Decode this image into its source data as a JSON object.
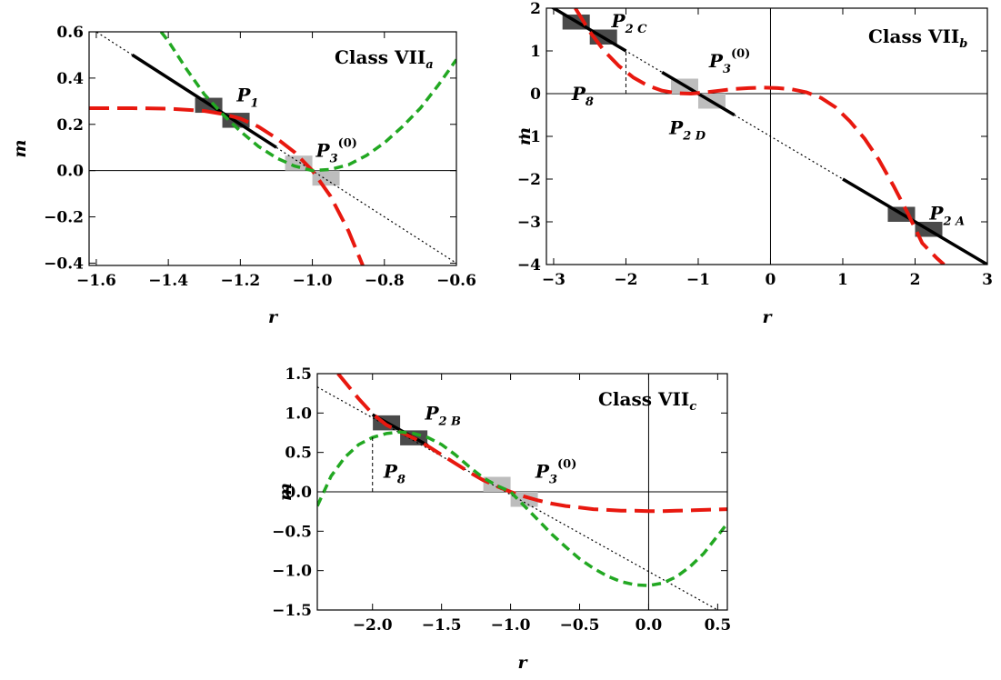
{
  "colors": {
    "red_curve": "#e8180f",
    "green_curve": "#22a822",
    "dark_marker": "#4a4a4a",
    "light_marker": "#bdbdbd"
  },
  "chart_data": [
    {
      "type": "line",
      "title": "Class VII",
      "title_subscript": "a",
      "xlabel": "r",
      "ylabel": "m",
      "xlim": [
        -1.62,
        -0.6
      ],
      "ylim": [
        -0.41,
        0.6
      ],
      "xticks": [
        -1.6,
        -1.4,
        -1.2,
        -1.0,
        -0.8,
        -0.6
      ],
      "xtick_labels": [
        "−1.6",
        "−1.4",
        "−1.2",
        "−1.0",
        "−0.8",
        "−0.6"
      ],
      "yticks": [
        -0.4,
        -0.2,
        0.0,
        0.2,
        0.4,
        0.6
      ],
      "ytick_labels": [
        "−0.4",
        "−0.2",
        "0.0",
        "0.2",
        "0.4",
        "0.6"
      ],
      "zero_lines": {
        "x": false,
        "y": true
      },
      "series": [
        {
          "style": "dotted-line",
          "x": [
            -1.62,
            -0.6
          ],
          "y": [
            0.62,
            -0.4
          ]
        },
        {
          "style": "black-line",
          "x": [
            -1.5,
            -1.1
          ],
          "y": [
            0.5,
            0.1
          ]
        },
        {
          "style": "red-dash",
          "x": [
            -1.62,
            -1.5,
            -1.4,
            -1.3,
            -1.25,
            -1.2,
            -1.15,
            -1.1,
            -1.05,
            -1.0,
            -0.95,
            -0.9,
            -0.86
          ],
          "y": [
            0.27,
            0.27,
            0.268,
            0.258,
            0.245,
            0.225,
            0.19,
            0.14,
            0.08,
            0.0,
            -0.11,
            -0.26,
            -0.41
          ]
        },
        {
          "style": "green-dash",
          "x": [
            -1.42,
            -1.4,
            -1.35,
            -1.3,
            -1.25,
            -1.2,
            -1.15,
            -1.1,
            -1.05,
            -1.0,
            -0.95,
            -0.9,
            -0.85,
            -0.8,
            -0.75,
            -0.7,
            -0.65,
            -0.6
          ],
          "y": [
            0.6,
            0.56,
            0.44,
            0.33,
            0.245,
            0.17,
            0.105,
            0.055,
            0.02,
            0.0,
            0.005,
            0.025,
            0.065,
            0.12,
            0.19,
            0.27,
            0.37,
            0.48
          ]
        }
      ],
      "markers": [
        {
          "x": -1.25,
          "y": 0.25,
          "shade": "dark",
          "label": "P",
          "sub": "1",
          "sup": "",
          "label_at": [
            -1.21,
            0.3
          ]
        },
        {
          "x": -1.0,
          "y": 0.0,
          "shade": "light",
          "label": "P",
          "sub": "3",
          "sup": "(0)",
          "label_at": [
            -0.99,
            0.06
          ]
        }
      ],
      "dashed_verticals": []
    },
    {
      "type": "line",
      "title": "Class VII",
      "title_subscript": "b",
      "xlabel": "r",
      "ylabel": "m",
      "xlim": [
        -3.1,
        3.0
      ],
      "ylim": [
        -4.0,
        2.0
      ],
      "xticks": [
        -3,
        -2,
        -1,
        0,
        1,
        2,
        3
      ],
      "xtick_labels": [
        "−3",
        "−2",
        "−1",
        "0",
        "1",
        "2",
        "3"
      ],
      "yticks": [
        -4,
        -3,
        -2,
        -1,
        0,
        1,
        2
      ],
      "ytick_labels": [
        "−4",
        "−3",
        "−2",
        "−1",
        "0",
        "1",
        "2"
      ],
      "zero_lines": {
        "x": true,
        "y": true
      },
      "series": [
        {
          "style": "dotted-line",
          "x": [
            -3.1,
            3.0
          ],
          "y": [
            2.1,
            -4.0
          ]
        },
        {
          "style": "black-line",
          "x": [
            -3.1,
            -2.0
          ],
          "y": [
            2.1,
            1.0
          ]
        },
        {
          "style": "black-line",
          "x": [
            -1.5,
            -0.5
          ],
          "y": [
            0.5,
            -0.5
          ]
        },
        {
          "style": "black-line",
          "x": [
            1.0,
            3.0
          ],
          "y": [
            -2.0,
            -4.0
          ]
        },
        {
          "style": "red-dash",
          "x": [
            -2.7,
            -2.5,
            -2.3,
            -2.1,
            -1.9,
            -1.7,
            -1.5,
            -1.3,
            -1.1,
            -0.9,
            -0.7,
            -0.5,
            -0.3,
            -0.1,
            0.1,
            0.3,
            0.5,
            0.7,
            0.9,
            1.1,
            1.3,
            1.5,
            1.7,
            1.9,
            2.1,
            2.3,
            2.4
          ],
          "y": [
            2.0,
            1.45,
            1.0,
            0.65,
            0.38,
            0.19,
            0.07,
            0.01,
            0.0,
            0.03,
            0.07,
            0.11,
            0.13,
            0.14,
            0.13,
            0.1,
            0.03,
            -0.1,
            -0.32,
            -0.65,
            -1.05,
            -1.55,
            -2.15,
            -2.8,
            -3.5,
            -3.85,
            -4.0
          ]
        }
      ],
      "markers": [
        {
          "x": -2.5,
          "y": 1.5,
          "shade": "dark",
          "label": "P",
          "sub": "2 C",
          "sup": "",
          "label_at": [
            -2.2,
            1.55
          ]
        },
        {
          "x": -1.0,
          "y": 0.0,
          "shade": "light",
          "label": "P",
          "sub": "3",
          "sup": "(0)",
          "label_at": [
            -0.85,
            0.62
          ]
        },
        {
          "x": 2.0,
          "y": -3.0,
          "shade": "dark",
          "label": "P",
          "sub": "2 A",
          "sup": "",
          "label_at": [
            2.2,
            -2.95
          ]
        }
      ],
      "extra_labels": [
        {
          "label": "P",
          "sub": "8",
          "sup": "",
          "label_at": [
            -2.75,
            -0.15
          ]
        },
        {
          "label": "P",
          "sub": "2 D",
          "sup": "",
          "label_at": [
            -1.4,
            -0.95
          ]
        }
      ],
      "dashed_verticals": [
        {
          "x": -2.0,
          "y_from": 0.0,
          "y_to": 1.0
        }
      ]
    },
    {
      "type": "line",
      "title": "Class VII",
      "title_subscript": "c",
      "xlabel": "r",
      "ylabel": "m",
      "xlim": [
        -2.4,
        0.57
      ],
      "ylim": [
        -1.5,
        1.5
      ],
      "xticks": [
        -2.0,
        -1.5,
        -1.0,
        -0.5,
        0.0,
        0.5
      ],
      "xtick_labels": [
        "−2.0",
        "−1.5",
        "−1.0",
        "−0.5",
        "0.0",
        "0.5"
      ],
      "yticks": [
        -1.5,
        -1.0,
        -0.5,
        0.0,
        0.5,
        1.0,
        1.5
      ],
      "ytick_labels": [
        "−1.5",
        "−1.0",
        "−0.5",
        "0.0",
        "0.5",
        "1.0",
        "1.5"
      ],
      "zero_lines": {
        "x": true,
        "y": true
      },
      "series": [
        {
          "style": "dotted-line",
          "x": [
            -2.4,
            0.5
          ],
          "y": [
            1.33,
            -1.5
          ]
        },
        {
          "style": "black-line",
          "x": [
            -2.0,
            -1.6
          ],
          "y": [
            0.98,
            0.59
          ]
        },
        {
          "style": "red-dash",
          "x": [
            -2.25,
            -2.1,
            -2.0,
            -1.9,
            -1.8,
            -1.7,
            -1.6,
            -1.5,
            -1.4,
            -1.3,
            -1.2,
            -1.1,
            -1.0,
            -0.9,
            -0.8,
            -0.7,
            -0.6,
            -0.5,
            -0.4,
            -0.3,
            -0.2,
            -0.1,
            0.0,
            0.1,
            0.2,
            0.3,
            0.4,
            0.57
          ],
          "y": [
            1.5,
            1.18,
            0.99,
            0.85,
            0.76,
            0.68,
            0.58,
            0.47,
            0.36,
            0.25,
            0.15,
            0.07,
            0.0,
            -0.06,
            -0.11,
            -0.15,
            -0.18,
            -0.2,
            -0.22,
            -0.23,
            -0.24,
            -0.24,
            -0.245,
            -0.245,
            -0.24,
            -0.235,
            -0.23,
            -0.22
          ]
        },
        {
          "style": "green-dash",
          "x": [
            -2.4,
            -2.3,
            -2.2,
            -2.1,
            -2.0,
            -1.9,
            -1.8,
            -1.7,
            -1.6,
            -1.5,
            -1.4,
            -1.3,
            -1.2,
            -1.1,
            -1.0,
            -0.9,
            -0.8,
            -0.7,
            -0.6,
            -0.5,
            -0.4,
            -0.3,
            -0.2,
            -0.1,
            0.0,
            0.1,
            0.2,
            0.3,
            0.4,
            0.57
          ],
          "y": [
            -0.18,
            0.2,
            0.44,
            0.6,
            0.69,
            0.74,
            0.76,
            0.74,
            0.69,
            0.6,
            0.47,
            0.32,
            0.18,
            0.08,
            0.0,
            -0.18,
            -0.36,
            -0.54,
            -0.7,
            -0.85,
            -0.97,
            -1.07,
            -1.14,
            -1.18,
            -1.19,
            -1.16,
            -1.08,
            -0.95,
            -0.78,
            -0.4
          ]
        }
      ],
      "markers": [
        {
          "x": -1.8,
          "y": 0.78,
          "shade": "dark",
          "label": "P",
          "sub": "2 B",
          "sup": "",
          "label_at": [
            -1.62,
            0.92
          ]
        },
        {
          "x": -1.0,
          "y": 0.0,
          "shade": "light",
          "label": "P",
          "sub": "3",
          "sup": "(0)",
          "label_at": [
            -0.82,
            0.18
          ]
        }
      ],
      "extra_labels": [
        {
          "label": "P",
          "sub": "8",
          "sup": "",
          "label_at": [
            -1.92,
            0.18
          ]
        }
      ],
      "dashed_verticals": [
        {
          "x": -2.0,
          "y_from": 0.0,
          "y_to": 0.72
        }
      ]
    }
  ]
}
